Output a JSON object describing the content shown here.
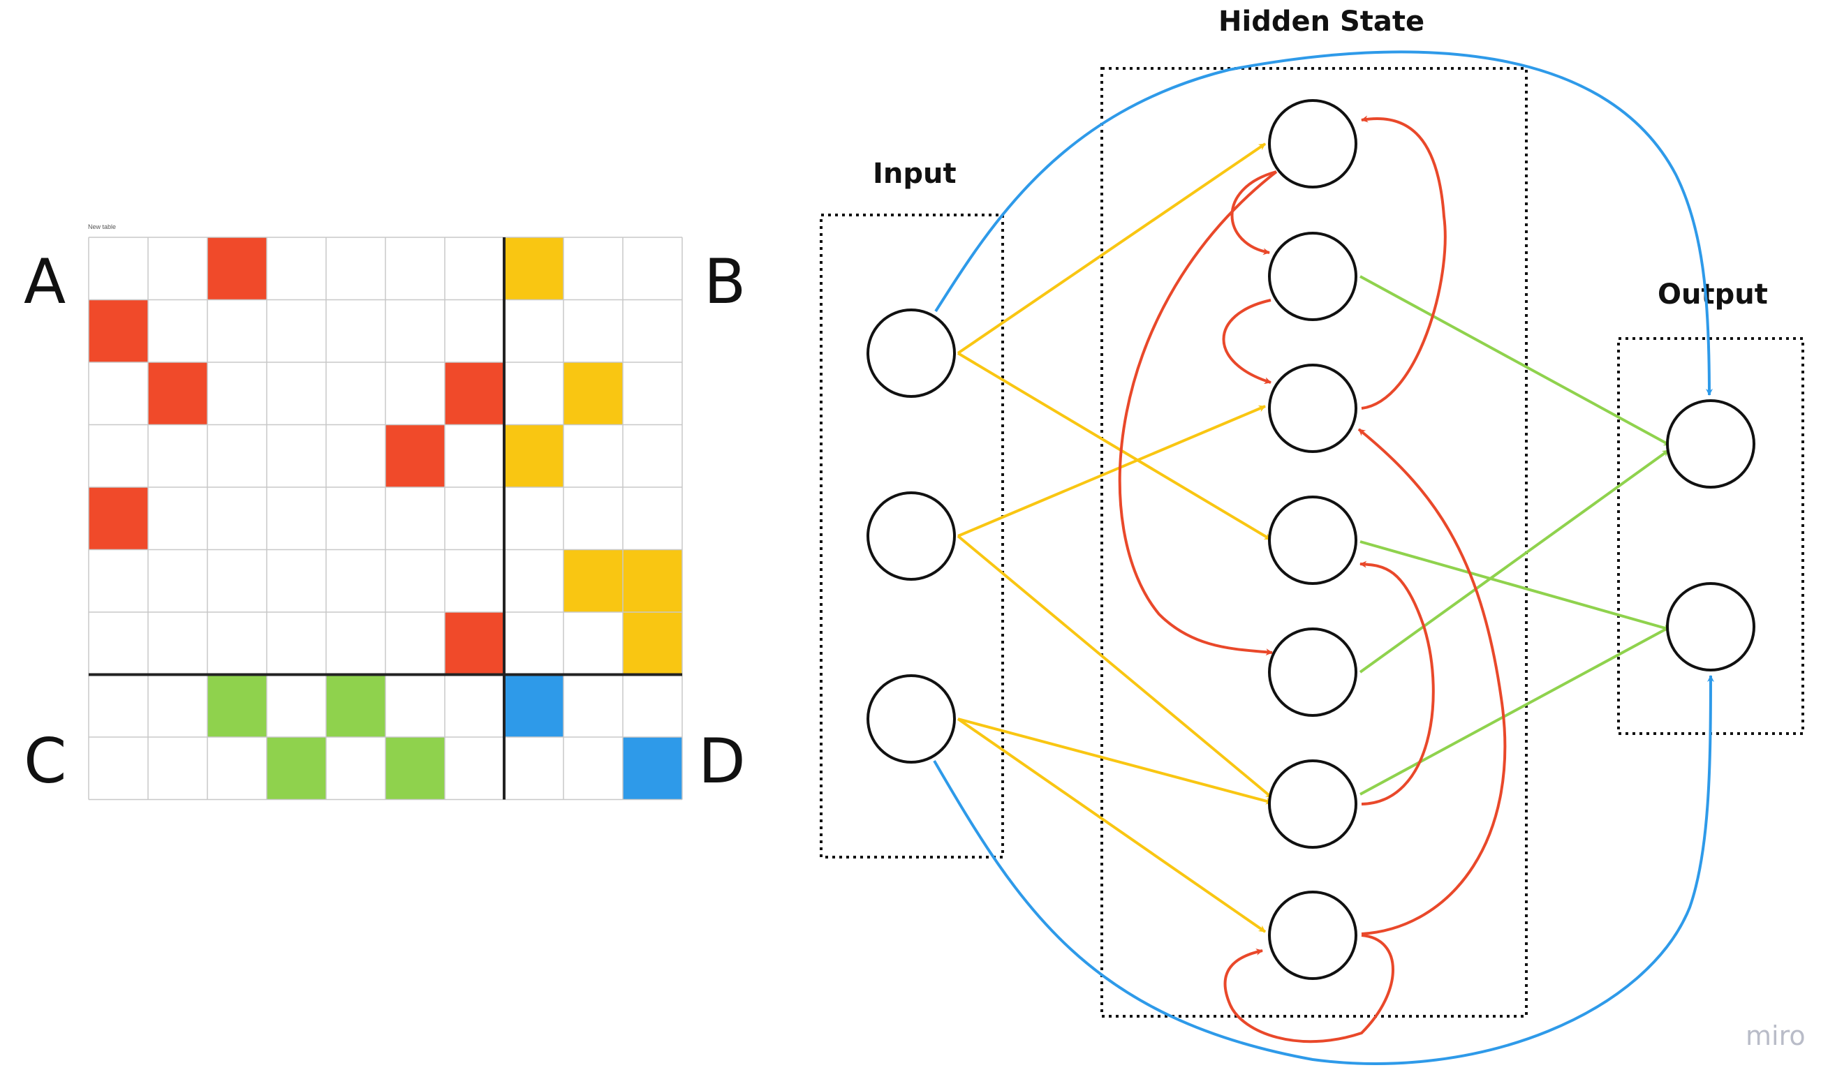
{
  "table": {
    "caption": "New table",
    "rows": 9,
    "cols": 10,
    "split_row": 7,
    "split_col": 7,
    "quadrant_labels": {
      "A": "A",
      "B": "B",
      "C": "C",
      "D": "D"
    },
    "cells": [
      {
        "r": 0,
        "c": 2,
        "color": "red"
      },
      {
        "r": 0,
        "c": 7,
        "color": "yellow"
      },
      {
        "r": 1,
        "c": 0,
        "color": "red"
      },
      {
        "r": 2,
        "c": 1,
        "color": "red"
      },
      {
        "r": 2,
        "c": 6,
        "color": "red"
      },
      {
        "r": 2,
        "c": 8,
        "color": "yellow"
      },
      {
        "r": 3,
        "c": 5,
        "color": "red"
      },
      {
        "r": 3,
        "c": 7,
        "color": "yellow"
      },
      {
        "r": 4,
        "c": 0,
        "color": "red"
      },
      {
        "r": 5,
        "c": 8,
        "color": "yellow"
      },
      {
        "r": 5,
        "c": 9,
        "color": "yellow"
      },
      {
        "r": 6,
        "c": 6,
        "color": "red"
      },
      {
        "r": 6,
        "c": 9,
        "color": "yellow"
      },
      {
        "r": 7,
        "c": 2,
        "color": "green"
      },
      {
        "r": 7,
        "c": 4,
        "color": "green"
      },
      {
        "r": 7,
        "c": 7,
        "color": "blue"
      },
      {
        "r": 8,
        "c": 3,
        "color": "green"
      },
      {
        "r": 8,
        "c": 5,
        "color": "green"
      },
      {
        "r": 8,
        "c": 9,
        "color": "blue"
      }
    ]
  },
  "colors": {
    "red": "#f04a2a",
    "yellow": "#f9c612",
    "green": "#8fd24d",
    "blue": "#2e9ae9",
    "grid_line": "#c8c8c8",
    "divider": "#222222"
  },
  "network": {
    "labels": {
      "input": "Input",
      "hidden": "Hidden State",
      "output": "Output"
    },
    "input_nodes": 3,
    "hidden_nodes": 7,
    "output_nodes": 2
  },
  "watermark": "miro"
}
